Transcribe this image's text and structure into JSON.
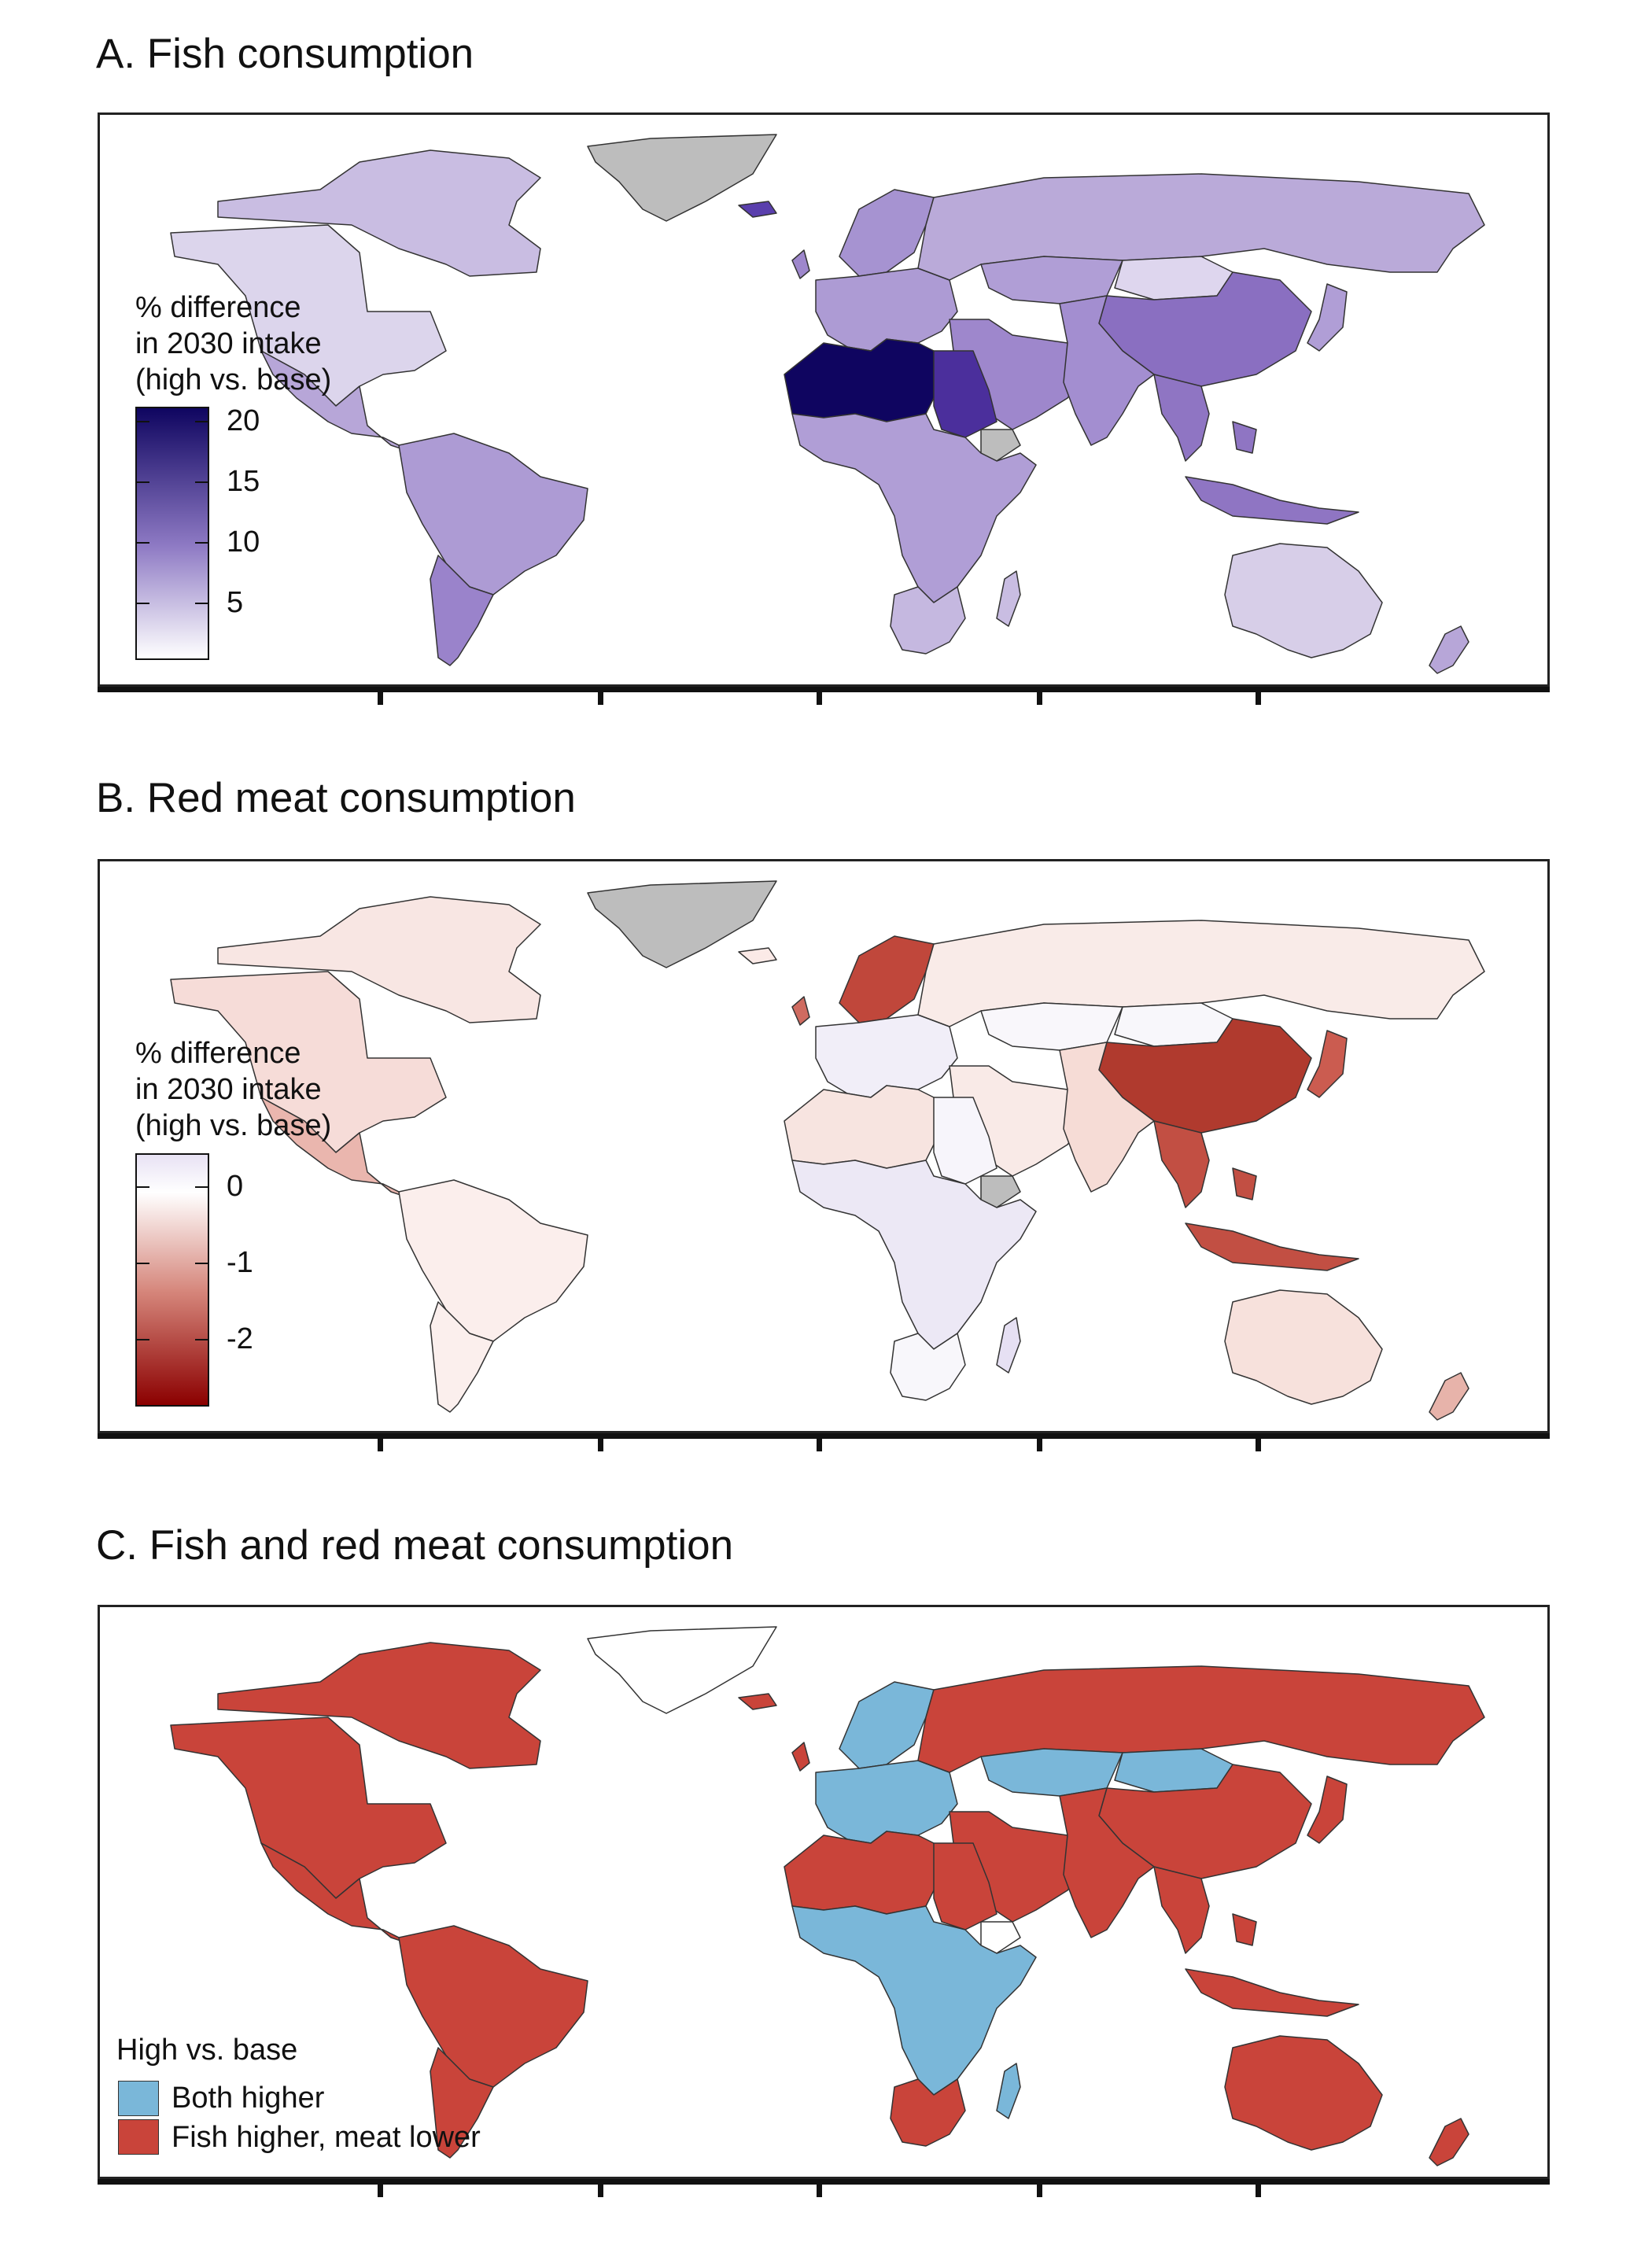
{
  "panels": [
    {
      "title": "A. Fish consumption",
      "legend": {
        "title_lines": [
          "% difference",
          "in 2030 intake",
          "(high vs. base)"
        ],
        "ticks": [
          "20",
          "15",
          "10",
          "5"
        ],
        "colors": {
          "high": "#0f0560",
          "mid": "#8e7ac4",
          "low": "#ffffff"
        }
      },
      "fills": {
        "north_america": "#dcd5ec",
        "canada": "#c9bde2",
        "mexico_central": "#b7a6d8",
        "south_america": "#ad9bd4",
        "south_america_south": "#9a83cb",
        "greenland": "#bdbdbd",
        "europe": "#ad9bd4",
        "iceland": "#5a3fad",
        "russia": "#baaad9",
        "north_africa": "#0f0560",
        "egypt_sudan": "#4b2f9c",
        "africa": "#b09ed6",
        "southern_africa": "#c5b8e0",
        "middle_east": "#9e87cc",
        "south_asia": "#a38ed0",
        "china": "#8a6fc1",
        "southeast_asia": "#8f75c3",
        "australia": "#d7cee8",
        "new_zealand": "#b7a6d8",
        "madagascar": "#c9bde2",
        "japan": "#b09ed6",
        "ethiopia": "#bdbdbd",
        "mongolia": "#ded6ee",
        "kazakhstan": "#b09ed6",
        "uk": "#9e87cc",
        "scandinavia": "#a693d1"
      }
    },
    {
      "title": "B. Red meat consumption",
      "legend": {
        "title_lines": [
          "% difference",
          "in 2030 intake",
          "(high vs. base)"
        ],
        "ticks": [
          "0",
          "-1",
          "-2"
        ],
        "colors": {
          "top": "#e8e2f4",
          "zero": "#ffffff",
          "mid": "#d5857a",
          "bottom": "#8b0000"
        }
      },
      "fills": {
        "north_america": "#f6dcd8",
        "canada": "#f8e6e3",
        "mexico_central": "#eab6ae",
        "south_america": "#fbeeec",
        "south_america_south": "#fbefed",
        "greenland": "#bdbdbd",
        "europe": "#f1eef8",
        "iceland": "#fbeae7",
        "russia": "#f9ebe8",
        "north_africa": "#f7e4e0",
        "egypt_sudan": "#f7f5fb",
        "africa": "#ece8f5",
        "southern_africa": "#f8f7fb",
        "middle_east": "#f9eae7",
        "south_asia": "#f6dcd6",
        "china": "#b03a2e",
        "southeast_asia": "#c24f43",
        "australia": "#f7e1dc",
        "new_zealand": "#e7b3aa",
        "madagascar": "#e6e0f3",
        "japan": "#cb5c50",
        "ethiopia": "#bdbdbd",
        "mongolia": "#f8f7fb",
        "kazakhstan": "#f9f7fb",
        "uk": "#cf6b60",
        "scandinavia": "#c0473b"
      }
    },
    {
      "title": "C. Fish and red meat consumption",
      "legend": {
        "title": "High vs. base",
        "items": [
          {
            "label": "Both higher",
            "color": "#7ab7d9"
          },
          {
            "label": "Fish higher, meat lower",
            "color": "#c9443a"
          }
        ]
      },
      "fills": {
        "north_america": "#c9443a",
        "canada": "#c9443a",
        "mexico_central": "#c9443a",
        "south_america": "#c9443a",
        "south_america_south": "#c9443a",
        "greenland": "#ffffff",
        "europe": "#7ab7d9",
        "iceland": "#c9443a",
        "russia": "#c9443a",
        "north_africa": "#c9443a",
        "egypt_sudan": "#c9443a",
        "africa": "#7ab7d9",
        "southern_africa": "#c9443a",
        "middle_east": "#c9443a",
        "south_asia": "#c9443a",
        "china": "#c9443a",
        "southeast_asia": "#c9443a",
        "australia": "#c9443a",
        "new_zealand": "#c9443a",
        "madagascar": "#7ab7d9",
        "japan": "#c9443a",
        "ethiopia": "#ffffff",
        "mongolia": "#7ab7d9",
        "kazakhstan": "#7ab7d9",
        "uk": "#c9443a",
        "scandinavia": "#7ab7d9"
      }
    }
  ]
}
